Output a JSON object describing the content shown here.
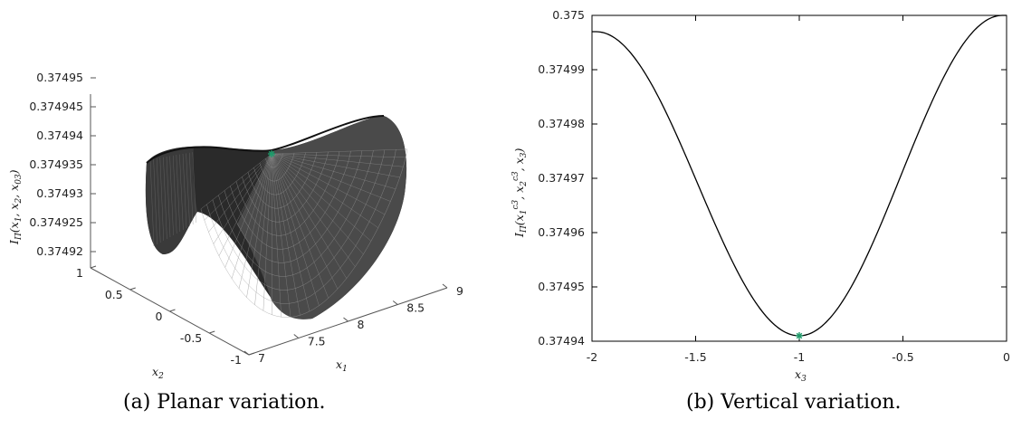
{
  "captions": {
    "a": "(a) Planar variation.",
    "b": "(b) Vertical variation."
  },
  "chart_data": [
    {
      "type": "surface",
      "zlabel": "I_Π(x1, x2, x03)",
      "xlabel": "x1",
      "ylabel": "x2",
      "x_ticks": [
        "7",
        "7.5",
        "8",
        "8.5",
        "9"
      ],
      "y_ticks": [
        "-1",
        "-0.5",
        "0",
        "0.5",
        "1"
      ],
      "z_ticks": [
        "0.37492",
        "0.374925",
        "0.37493",
        "0.374935",
        "0.37494",
        "0.374945",
        "0.37495"
      ],
      "xlim": [
        7,
        9
      ],
      "ylim": [
        -1,
        1
      ],
      "zlim": [
        0.37492,
        0.37495
      ],
      "marker": {
        "x1": 8,
        "x2": 0,
        "value": 0.37494,
        "color": "#1e9a6a"
      }
    },
    {
      "type": "line",
      "xlabel": "x3",
      "ylabel": "I_Π(x1c3, x2c3, x3)",
      "xlim": [
        -2,
        0
      ],
      "ylim": [
        0.37494,
        0.375
      ],
      "x_ticks": [
        "-2",
        "-1.5",
        "-1",
        "-0.5",
        "0"
      ],
      "y_ticks": [
        "0.37494",
        "0.37495",
        "0.37496",
        "0.37497",
        "0.37498",
        "0.37499",
        "0.375"
      ],
      "x": [
        -2.0,
        -1.9,
        -1.8,
        -1.7,
        -1.6,
        -1.5,
        -1.4,
        -1.3,
        -1.2,
        -1.1,
        -1.0,
        -0.9,
        -0.8,
        -0.7,
        -0.6,
        -0.5,
        -0.4,
        -0.3,
        -0.2,
        -0.1,
        0.0
      ],
      "y": [
        0.374997,
        0.374994,
        0.374987,
        0.374976,
        0.374965,
        0.374955,
        0.374962,
        0.374956,
        0.374947,
        0.374943,
        0.374941,
        0.374943,
        0.374948,
        0.374956,
        0.374966,
        0.374976,
        0.374986,
        0.374993,
        0.374998,
        0.375,
        0.375
      ],
      "marker": {
        "x": -1,
        "y": 0.374941,
        "color": "#1e9a6a"
      }
    }
  ]
}
